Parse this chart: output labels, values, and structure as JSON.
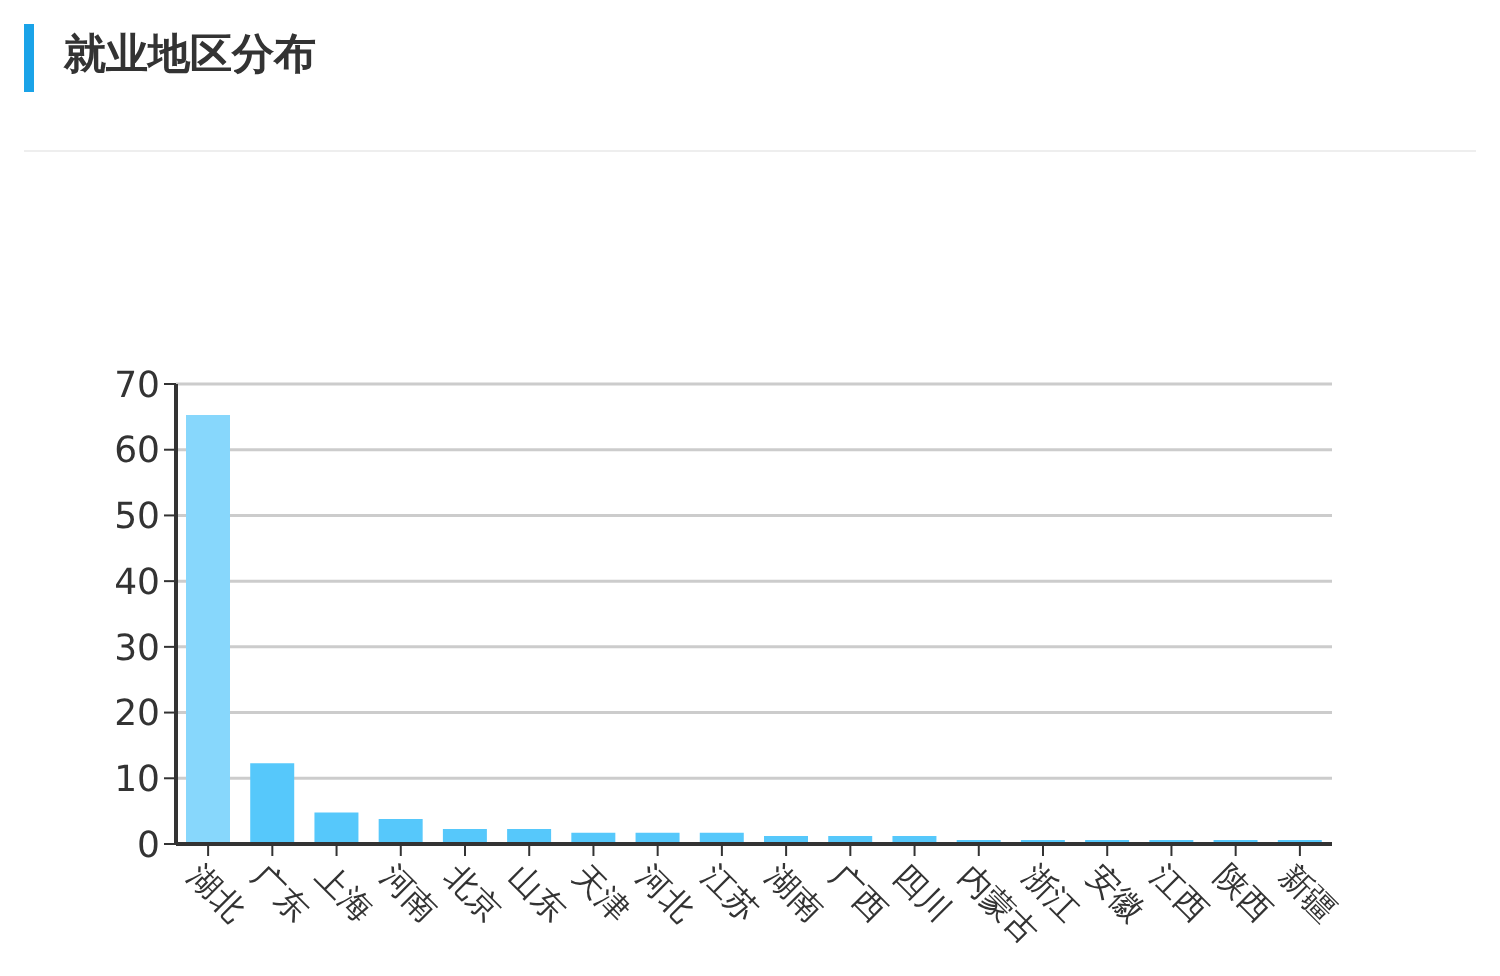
{
  "chart_data": {
    "type": "bar",
    "title": "就业地区分布",
    "categories": [
      "湖北",
      "广东",
      "上海",
      "河南",
      "北京",
      "山东",
      "天津",
      "河北",
      "江苏",
      "湖南",
      "广西",
      "四川",
      "内蒙古",
      "浙江",
      "安徽",
      "江西",
      "陕西",
      "新疆"
    ],
    "values": [
      65.3,
      12.3,
      4.8,
      3.8,
      2.3,
      2.3,
      1.7,
      1.7,
      1.7,
      1.2,
      1.2,
      1.2,
      0.6,
      0.6,
      0.6,
      0.6,
      0.6,
      0.6
    ],
    "colors": [
      "#87d7fc",
      "#56c8fb",
      "#56c8fb",
      "#56c8fb",
      "#56c8fb",
      "#56c8fb",
      "#56c8fb",
      "#56c8fb",
      "#56c8fb",
      "#56c8fb",
      "#56c8fb",
      "#56c8fb",
      "#56c8fb",
      "#56c8fb",
      "#56c8fb",
      "#56c8fb",
      "#56c8fb",
      "#56c8fb"
    ],
    "ylim": [
      0,
      70
    ],
    "yticks": [
      0,
      10,
      20,
      30,
      40,
      50,
      60,
      70
    ],
    "grid": "y",
    "legend": false
  }
}
